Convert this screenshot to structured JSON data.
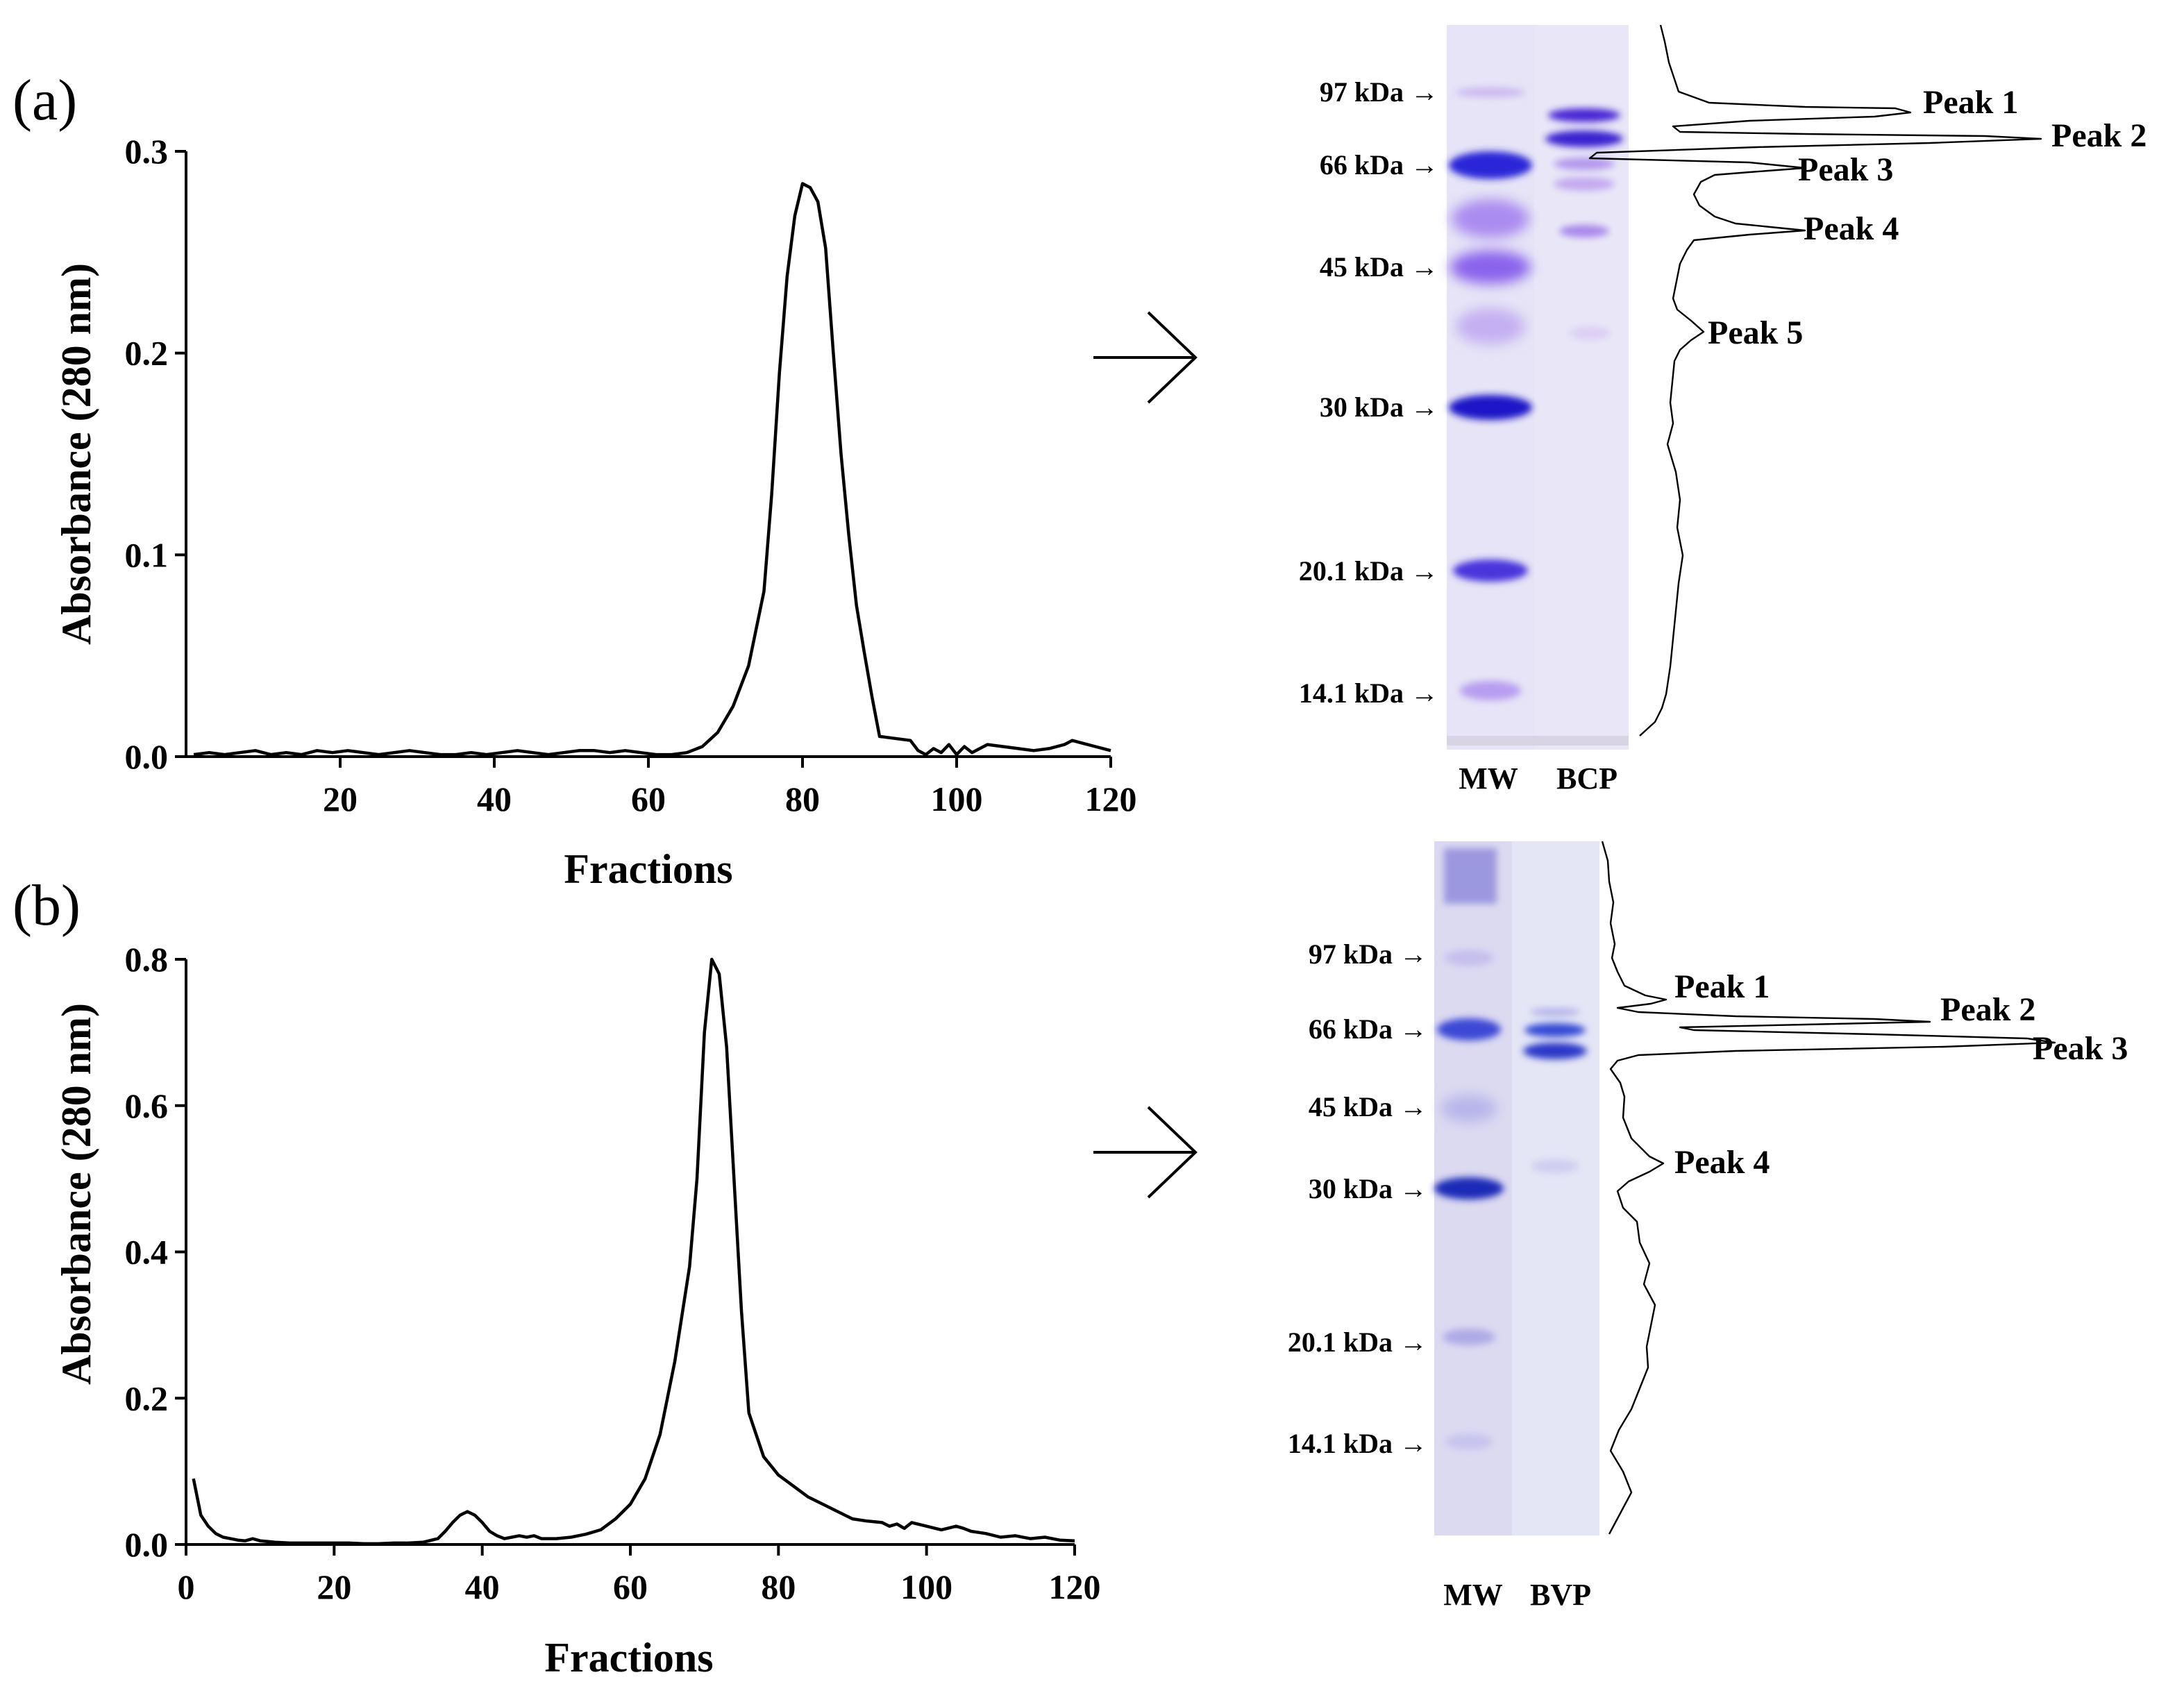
{
  "chart_data": [
    {
      "id": "a",
      "type": "line",
      "panel_label": "(a)",
      "xlabel": "Fractions",
      "ylabel": "Absorbance (280 nm)",
      "xlim": [
        0,
        120
      ],
      "ylim": [
        0,
        0.3
      ],
      "xticks": [
        "20",
        "40",
        "60",
        "80",
        "100",
        "120"
      ],
      "xtick_values": [
        20,
        40,
        60,
        80,
        100,
        120
      ],
      "yticks": [
        "0.0",
        "0.1",
        "0.2",
        "0.3"
      ],
      "ytick_values": [
        0,
        0.1,
        0.2,
        0.3
      ],
      "series": [
        {
          "name": "absorbance",
          "x": [
            1,
            3,
            5,
            7,
            9,
            11,
            13,
            15,
            17,
            19,
            21,
            23,
            25,
            27,
            29,
            31,
            33,
            35,
            37,
            39,
            41,
            43,
            45,
            47,
            49,
            51,
            53,
            55,
            57,
            59,
            61,
            63,
            65,
            67,
            69,
            71,
            73,
            75,
            76,
            77,
            78,
            79,
            80,
            81,
            82,
            83,
            84,
            85,
            86,
            87,
            88,
            89,
            90,
            92,
            94,
            95,
            96,
            97,
            98,
            99,
            100,
            101,
            102,
            103,
            104,
            106,
            108,
            110,
            112,
            114,
            115,
            116,
            118,
            120
          ],
          "y": [
            0.001,
            0.002,
            0.001,
            0.002,
            0.003,
            0.001,
            0.002,
            0.001,
            0.003,
            0.002,
            0.003,
            0.002,
            0.001,
            0.002,
            0.003,
            0.002,
            0.001,
            0.001,
            0.002,
            0.001,
            0.002,
            0.003,
            0.002,
            0.001,
            0.002,
            0.003,
            0.003,
            0.002,
            0.003,
            0.002,
            0.001,
            0.001,
            0.002,
            0.005,
            0.012,
            0.025,
            0.045,
            0.082,
            0.13,
            0.19,
            0.238,
            0.268,
            0.284,
            0.282,
            0.275,
            0.252,
            0.2,
            0.15,
            0.11,
            0.075,
            0.052,
            0.03,
            0.01,
            0.009,
            0.008,
            0.003,
            0.001,
            0.004,
            0.002,
            0.006,
            0.001,
            0.005,
            0.002,
            0.004,
            0.006,
            0.005,
            0.004,
            0.003,
            0.004,
            0.006,
            0.008,
            0.007,
            0.005,
            0.003
          ]
        }
      ],
      "gel": {
        "marker_labels": [
          "97 kDa →",
          "66 kDa →",
          "45 kDa →",
          "30 kDa →",
          "20.1 kDa →",
          "14.1 kDa →"
        ],
        "lane_labels": [
          "MW",
          "BCP"
        ],
        "peak_labels": [
          "Peak 1",
          "Peak 2",
          "Peak 3",
          "Peak 4",
          "Peak 5"
        ]
      }
    },
    {
      "id": "b",
      "type": "line",
      "panel_label": "(b)",
      "xlabel": "Fractions",
      "ylabel": "Absorbance (280 nm)",
      "xlim": [
        0,
        120
      ],
      "ylim": [
        0,
        0.8
      ],
      "xticks": [
        "0",
        "20",
        "40",
        "60",
        "80",
        "100",
        "120"
      ],
      "xtick_values": [
        0,
        20,
        40,
        60,
        80,
        100,
        120
      ],
      "yticks": [
        "0.0",
        "0.2",
        "0.4",
        "0.6",
        "0.8"
      ],
      "ytick_values": [
        0,
        0.2,
        0.4,
        0.6,
        0.8
      ],
      "series": [
        {
          "name": "absorbance",
          "x": [
            1,
            2,
            3,
            4,
            5,
            6,
            7,
            8,
            9,
            10,
            12,
            14,
            16,
            18,
            20,
            22,
            24,
            26,
            28,
            30,
            32,
            34,
            35,
            36,
            37,
            38,
            39,
            40,
            41,
            42,
            43,
            44,
            45,
            46,
            47,
            48,
            50,
            52,
            54,
            56,
            58,
            60,
            62,
            64,
            66,
            68,
            69,
            70,
            71,
            72,
            73,
            74,
            75,
            76,
            78,
            80,
            82,
            84,
            86,
            88,
            90,
            92,
            94,
            95,
            96,
            97,
            98,
            100,
            102,
            104,
            105,
            106,
            108,
            110,
            112,
            114,
            116,
            118,
            120
          ],
          "y": [
            0.09,
            0.04,
            0.025,
            0.015,
            0.01,
            0.008,
            0.006,
            0.005,
            0.008,
            0.005,
            0.003,
            0.002,
            0.002,
            0.002,
            0.002,
            0.002,
            0.001,
            0.001,
            0.002,
            0.002,
            0.003,
            0.008,
            0.018,
            0.03,
            0.04,
            0.045,
            0.04,
            0.03,
            0.018,
            0.012,
            0.008,
            0.01,
            0.012,
            0.01,
            0.012,
            0.008,
            0.008,
            0.01,
            0.014,
            0.02,
            0.035,
            0.055,
            0.09,
            0.15,
            0.25,
            0.38,
            0.5,
            0.7,
            0.8,
            0.78,
            0.68,
            0.5,
            0.32,
            0.18,
            0.12,
            0.095,
            0.08,
            0.065,
            0.055,
            0.045,
            0.035,
            0.032,
            0.03,
            0.025,
            0.028,
            0.022,
            0.03,
            0.025,
            0.02,
            0.025,
            0.022,
            0.018,
            0.015,
            0.01,
            0.012,
            0.008,
            0.01,
            0.006,
            0.005
          ]
        }
      ],
      "gel": {
        "marker_labels": [
          "97 kDa →",
          "66 kDa →",
          "45 kDa →",
          "30 kDa →",
          "20.1 kDa →",
          "14.1 kDa →"
        ],
        "lane_labels": [
          "MW",
          "BVP"
        ],
        "peak_labels": [
          "Peak 1",
          "Peak 2",
          "Peak 3",
          "Peak 4"
        ]
      }
    }
  ],
  "colors": {
    "gel_background": "#e6e4f6",
    "band_strong": "#2424d4",
    "band_medium": "#6a48e4",
    "band_light": "#b49ef0",
    "band_faint": "#cfc6f2",
    "line": "#000000"
  }
}
